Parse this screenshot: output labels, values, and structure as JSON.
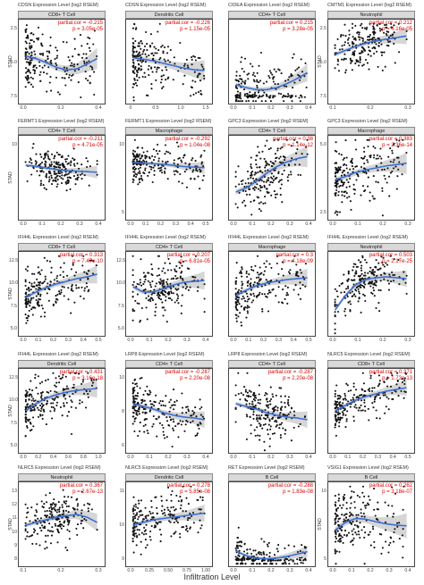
{
  "figure": {
    "x_axis_title": "Infiltration Level"
  },
  "chart_data": [
    {
      "type": "scatter",
      "title": "CDSN Expression Level (log2 RSEM)",
      "cell": "CD8+ T Cell",
      "ylabel": "STAD",
      "partial_cor": "partial.cor = -0.215",
      "p_value": "p = 3.05e-05",
      "xlim": [
        -0.05,
        0.55
      ],
      "ylim": [
        0,
        10
      ],
      "xticks": [
        "0.0",
        "0.2",
        "0.4"
      ],
      "yticks": [
        "2.5",
        "5.0",
        "7.5"
      ],
      "trend_y": [
        5.8,
        5.5,
        5.0,
        4.4,
        4.1,
        4.2,
        4.8,
        5.5
      ],
      "spread": 1.8,
      "density": "left"
    },
    {
      "type": "scatter",
      "title": "CDSN Expression Level (log2 RSEM)",
      "cell": "Dendritic Cell",
      "ylabel": "",
      "partial_cor": "partial.cor = -0.226",
      "p_value": "p = 1.15e-05",
      "xlim": [
        -0.1,
        2.0
      ],
      "ylim": [
        0,
        10
      ],
      "xticks": [
        "0",
        "0.5",
        "1.0",
        "1.5"
      ],
      "yticks": [],
      "trend_y": [
        5.6,
        5.4,
        5.2,
        4.9,
        4.6,
        4.3,
        4.1,
        4.0
      ],
      "spread": 1.8,
      "density": "left"
    },
    {
      "type": "scatter",
      "title": "CIDEA Expression Level (log2 RSEM)",
      "cell": "CD4+ T Cell",
      "ylabel": "",
      "partial_cor": "partial.cor = 0.215",
      "p_value": "p = 3.28e-05",
      "xlim": [
        -0.05,
        0.45
      ],
      "ylim": [
        0,
        8
      ],
      "xticks": [
        "0.0",
        "0.1",
        "0.2",
        "0.3",
        "0.4"
      ],
      "yticks": [],
      "trend_y": [
        1.8,
        1.5,
        1.3,
        1.3,
        1.5,
        1.9,
        2.4,
        3.0
      ],
      "spread": 1.2,
      "density": "floor"
    },
    {
      "type": "scatter",
      "title": "CMTM1 Expression Level (log2 RSEM)",
      "cell": "Neutrophil",
      "ylabel": "STAD",
      "partial_cor": "partial.cor = 0.212",
      "p_value": "p = 4.16e-05",
      "xlim": [
        -0.02,
        0.35
      ],
      "ylim": [
        0,
        10
      ],
      "xticks": [
        "0.1",
        "0.2",
        "0.3"
      ],
      "yticks": [
        "2.5",
        "5.0",
        "7.5"
      ],
      "trend_y": [
        6.0,
        6.5,
        7.0,
        7.4,
        7.7,
        7.9,
        8.1,
        8.3
      ],
      "spread": 1.4,
      "density": "mid"
    },
    {
      "type": "scatter",
      "title": "FERMT1 Expression Level (log2 RSEM)",
      "cell": "CD4+ T Cell",
      "ylabel": "STAD",
      "partial_cor": "partial.cor = -0.211",
      "p_value": "p = 4.71e-05",
      "xlim": [
        -0.05,
        0.45
      ],
      "ylim": [
        0,
        15
      ],
      "xticks": [
        "0.0",
        "0.1",
        "0.2",
        "0.3",
        "0.4"
      ],
      "yticks": [
        "10"
      ],
      "trend_y": [
        10.0,
        9.8,
        9.5,
        9.2,
        9.0,
        8.9,
        8.8,
        8.7
      ],
      "spread": 1.6,
      "density": "mid"
    },
    {
      "type": "scatter",
      "title": "FERMT1 Expression Level (log2 RSEM)",
      "cell": "Macrophage",
      "ylabel": "",
      "partial_cor": "partial.cor = -0.292",
      "p_value": "p = 1.04e-08",
      "xlim": [
        -0.02,
        0.55
      ],
      "ylim": [
        0,
        14
      ],
      "xticks": [
        "0.0",
        "0.1",
        "0.2",
        "0.3",
        "0.4",
        "0.5"
      ],
      "yticks": [
        "10",
        "5"
      ],
      "trend_y": [
        9.8,
        9.7,
        9.6,
        9.5,
        9.3,
        9.1,
        9.0,
        8.9
      ],
      "spread": 1.5,
      "density": "left"
    },
    {
      "type": "scatter",
      "title": "GPC3 Expression Level (log2 RSEM)",
      "cell": "CD4+ T Cell",
      "ylabel": "",
      "partial_cor": "partial.cor = 0.38",
      "p_value": "p = 1.14e-12",
      "xlim": [
        -0.05,
        0.45
      ],
      "ylim": [
        0,
        12
      ],
      "xticks": [
        "0.0",
        "0.1",
        "0.2",
        "0.3",
        "0.4"
      ],
      "yticks": [],
      "trend_y": [
        4.0,
        4.6,
        5.6,
        6.8,
        7.8,
        8.5,
        9.0,
        9.3
      ],
      "spread": 2.2,
      "density": "mid"
    },
    {
      "type": "scatter",
      "title": "GPC3 Expression Level (log2 RSEM)",
      "cell": "Macrophage",
      "ylabel": "",
      "partial_cor": "partial.cor = 0.383",
      "p_value": "p = 2.36e-14",
      "xlim": [
        -0.02,
        0.35
      ],
      "ylim": [
        0,
        12
      ],
      "xticks": [
        "0.0",
        "0.1",
        "0.2",
        "0.3"
      ],
      "yticks": [
        "5.0",
        "2.5"
      ],
      "trend_y": [
        5.8,
        6.3,
        6.9,
        7.3,
        7.6,
        7.9,
        8.1,
        8.3
      ],
      "spread": 2.2,
      "density": "left"
    },
    {
      "type": "scatter",
      "title": "IFI44L Expression Level (log2 RSEM)",
      "cell": "CD8+ T Cell",
      "ylabel": "STAD",
      "partial_cor": "partial.cor = 0.313",
      "p_value": "p = 7.47e-10",
      "xlim": [
        -0.05,
        0.55
      ],
      "ylim": [
        4,
        13
      ],
      "xticks": [
        "0.0",
        "0.1",
        "0.2",
        "0.3",
        "0.4",
        "0.5"
      ],
      "yticks": [
        "12.5",
        "10.0",
        "7.5",
        "5.0"
      ],
      "trend_y": [
        8.2,
        8.8,
        9.3,
        9.7,
        10.0,
        10.3,
        10.5,
        10.8
      ],
      "spread": 1.4,
      "density": "left"
    },
    {
      "type": "scatter",
      "title": "IFI44L Expression Level (log2 RSEM)",
      "cell": "CD4+ T Cell",
      "ylabel": "",
      "partial_cor": "partial.cor = 0.207",
      "p_value": "p = 6.81e-05",
      "xlim": [
        -0.05,
        0.45
      ],
      "ylim": [
        4,
        13
      ],
      "xticks": [
        "0.0",
        "0.1",
        "0.2",
        "0.3",
        "0.4"
      ],
      "yticks": [
        "12.5",
        "10.0",
        "7.5",
        "5.0"
      ],
      "trend_y": [
        9.4,
        8.8,
        8.8,
        9.2,
        9.6,
        9.9,
        10.0,
        10.1
      ],
      "spread": 1.4,
      "density": "mid"
    },
    {
      "type": "scatter",
      "title": "IFI44L Expression Level (log2 RSEM)",
      "cell": "Macrophage",
      "ylabel": "",
      "partial_cor": "partial.cor = 0.3",
      "p_value": "p = 4.18e-09",
      "xlim": [
        -0.02,
        0.55
      ],
      "ylim": [
        4,
        13
      ],
      "xticks": [
        "0.0",
        "0.1",
        "0.2",
        "0.3",
        "0.4",
        "0.5"
      ],
      "yticks": [],
      "trend_y": [
        8.4,
        9.0,
        9.5,
        9.8,
        10.0,
        10.2,
        10.3,
        10.4
      ],
      "spread": 1.4,
      "density": "left"
    },
    {
      "type": "scatter",
      "title": "IFI44L Expression Level (log2 RSEM)",
      "cell": "Neutrophil",
      "ylabel": "",
      "partial_cor": "partial.cor = 0.503",
      "p_value": "p = 2.17e-25",
      "xlim": [
        -0.02,
        0.35
      ],
      "ylim": [
        4,
        13
      ],
      "xticks": [
        "0.0",
        "0.1",
        "0.2",
        "0.3"
      ],
      "yticks": [],
      "trend_y": [
        6.8,
        8.4,
        9.6,
        10.2,
        10.4,
        10.5,
        10.4,
        10.3
      ],
      "spread": 1.3,
      "density": "mid"
    },
    {
      "type": "scatter",
      "title": "IFI44L Expression Level (log2 RSEM)",
      "cell": "Dendritic Cell",
      "ylabel": "STAD",
      "partial_cor": "partial.cor = 0.431",
      "p_value": "p = 3.16e-18",
      "xlim": [
        -0.1,
        1.1
      ],
      "ylim": [
        4,
        13
      ],
      "xticks": [
        "0.0",
        "0.2",
        "0.4",
        "0.6",
        "0.8",
        "1.0"
      ],
      "yticks": [
        "12.5",
        "10.0",
        "7.5",
        "5.0"
      ],
      "trend_y": [
        8.6,
        9.4,
        10.0,
        10.4,
        10.7,
        10.9,
        11.0,
        11.1
      ],
      "spread": 1.4,
      "density": "left"
    },
    {
      "type": "scatter",
      "title": "LRP8 Expression Level (log2 RSEM)",
      "cell": "CD4+ T Cell",
      "ylabel": "",
      "partial_cor": "partial.cor = -0.287",
      "p_value": "p = 2.20e-08",
      "xlim": [
        -0.05,
        0.45
      ],
      "ylim": [
        4,
        13
      ],
      "xticks": [
        "0.0",
        "0.1",
        "0.2",
        "0.3",
        "0.4"
      ],
      "yticks": [
        "10",
        "8",
        "6"
      ],
      "trend_y": [
        9.4,
        9.1,
        8.8,
        8.4,
        8.1,
        7.9,
        7.8,
        7.6
      ],
      "spread": 1.3,
      "density": "left"
    },
    {
      "type": "scatter",
      "title": "LRP8 Expression Level (log2 RSEM)",
      "cell": "CD4+ T Cell",
      "ylabel": "",
      "partial_cor": "partial.cor = -0.287",
      "p_value": "p = 2.20e-08",
      "xlim": [
        -0.05,
        0.45
      ],
      "ylim": [
        4,
        13
      ],
      "xticks": [
        "0.0",
        "0.1",
        "0.2",
        "0.3",
        "0.4"
      ],
      "yticks": [],
      "trend_y": [
        9.4,
        9.1,
        8.8,
        8.4,
        8.1,
        7.9,
        7.8,
        7.6
      ],
      "spread": 1.3,
      "density": "mid"
    },
    {
      "type": "scatter",
      "title": "NLRC5 Expression Level (log2 RSEM)",
      "cell": "CD8+ T Cell",
      "ylabel": "",
      "partial_cor": "partial.cor = 0.371",
      "p_value": "p = 1.73e-13",
      "xlim": [
        -0.05,
        0.55
      ],
      "ylim": [
        4,
        13
      ],
      "xticks": [
        "0.0",
        "0.1",
        "0.2",
        "0.3",
        "0.4",
        "0.5"
      ],
      "yticks": [],
      "trend_y": [
        8.6,
        9.2,
        9.8,
        10.2,
        10.5,
        10.8,
        11.0,
        11.2
      ],
      "spread": 1.2,
      "density": "left"
    },
    {
      "type": "scatter",
      "title": "NLRC5 Expression Level (log2 RSEM)",
      "cell": "Neutrophil",
      "ylabel": "STAD",
      "partial_cor": "partial.cor = 0.367",
      "p_value": "p = 2.67e-13",
      "xlim": [
        -0.02,
        0.35
      ],
      "ylim": [
        7,
        13
      ],
      "xticks": [
        "0.1",
        "0.2",
        "0.3"
      ],
      "yticks": [
        "13",
        "12",
        "11",
        "10",
        "9",
        "8"
      ],
      "trend_y": [
        10.0,
        10.2,
        10.4,
        10.6,
        10.7,
        10.8,
        10.6,
        10.2
      ],
      "spread": 0.9,
      "density": "mid"
    },
    {
      "type": "scatter",
      "title": "NLRC5 Expression Level (log2 RSEM)",
      "cell": "Dendritic Cell",
      "ylabel": "",
      "partial_cor": "partial.cor = 0.278",
      "p_value": "p = 5.85e-08",
      "xlim": [
        -0.1,
        1.1
      ],
      "ylim": [
        7,
        13
      ],
      "xticks": [
        "0.0",
        "0.25",
        "0.50",
        "0.75",
        "1.00"
      ],
      "yticks": [
        "11",
        "10",
        "9"
      ],
      "trend_y": [
        10.0,
        10.2,
        10.4,
        10.5,
        10.6,
        10.7,
        10.8,
        10.9
      ],
      "spread": 0.9,
      "density": "left"
    },
    {
      "type": "scatter",
      "title": "RET Expression Level (log2 RSEM)",
      "cell": "B Cell",
      "ylabel": "",
      "partial_cor": "partial.cor = -0.288",
      "p_value": "p = 1.83e-08",
      "xlim": [
        -0.02,
        0.5
      ],
      "ylim": [
        0,
        10
      ],
      "xticks": [
        "0.0",
        "0.1",
        "0.2",
        "0.3",
        "0.4"
      ],
      "yticks": [],
      "trend_y": [
        1.8,
        1.2,
        0.9,
        0.8,
        0.9,
        1.1,
        1.4,
        1.7
      ],
      "spread": 1.0,
      "density": "floor"
    },
    {
      "type": "scatter",
      "title": "VSIG1 Expression Level (log2 RSEM)",
      "cell": "B Cell",
      "ylabel": "STAD",
      "partial_cor": "partial.cor = 0.262",
      "p_value": "p = 3.18e-07",
      "xlim": [
        -0.02,
        0.5
      ],
      "ylim": [
        0,
        12
      ],
      "xticks": [
        "0.0",
        "0.1",
        "0.2",
        "0.3",
        "0.4"
      ],
      "yticks": [
        "10",
        "5"
      ],
      "trend_y": [
        5.2,
        6.4,
        7.0,
        6.9,
        6.5,
        6.2,
        6.0,
        5.9
      ],
      "spread": 2.6,
      "density": "left"
    }
  ]
}
